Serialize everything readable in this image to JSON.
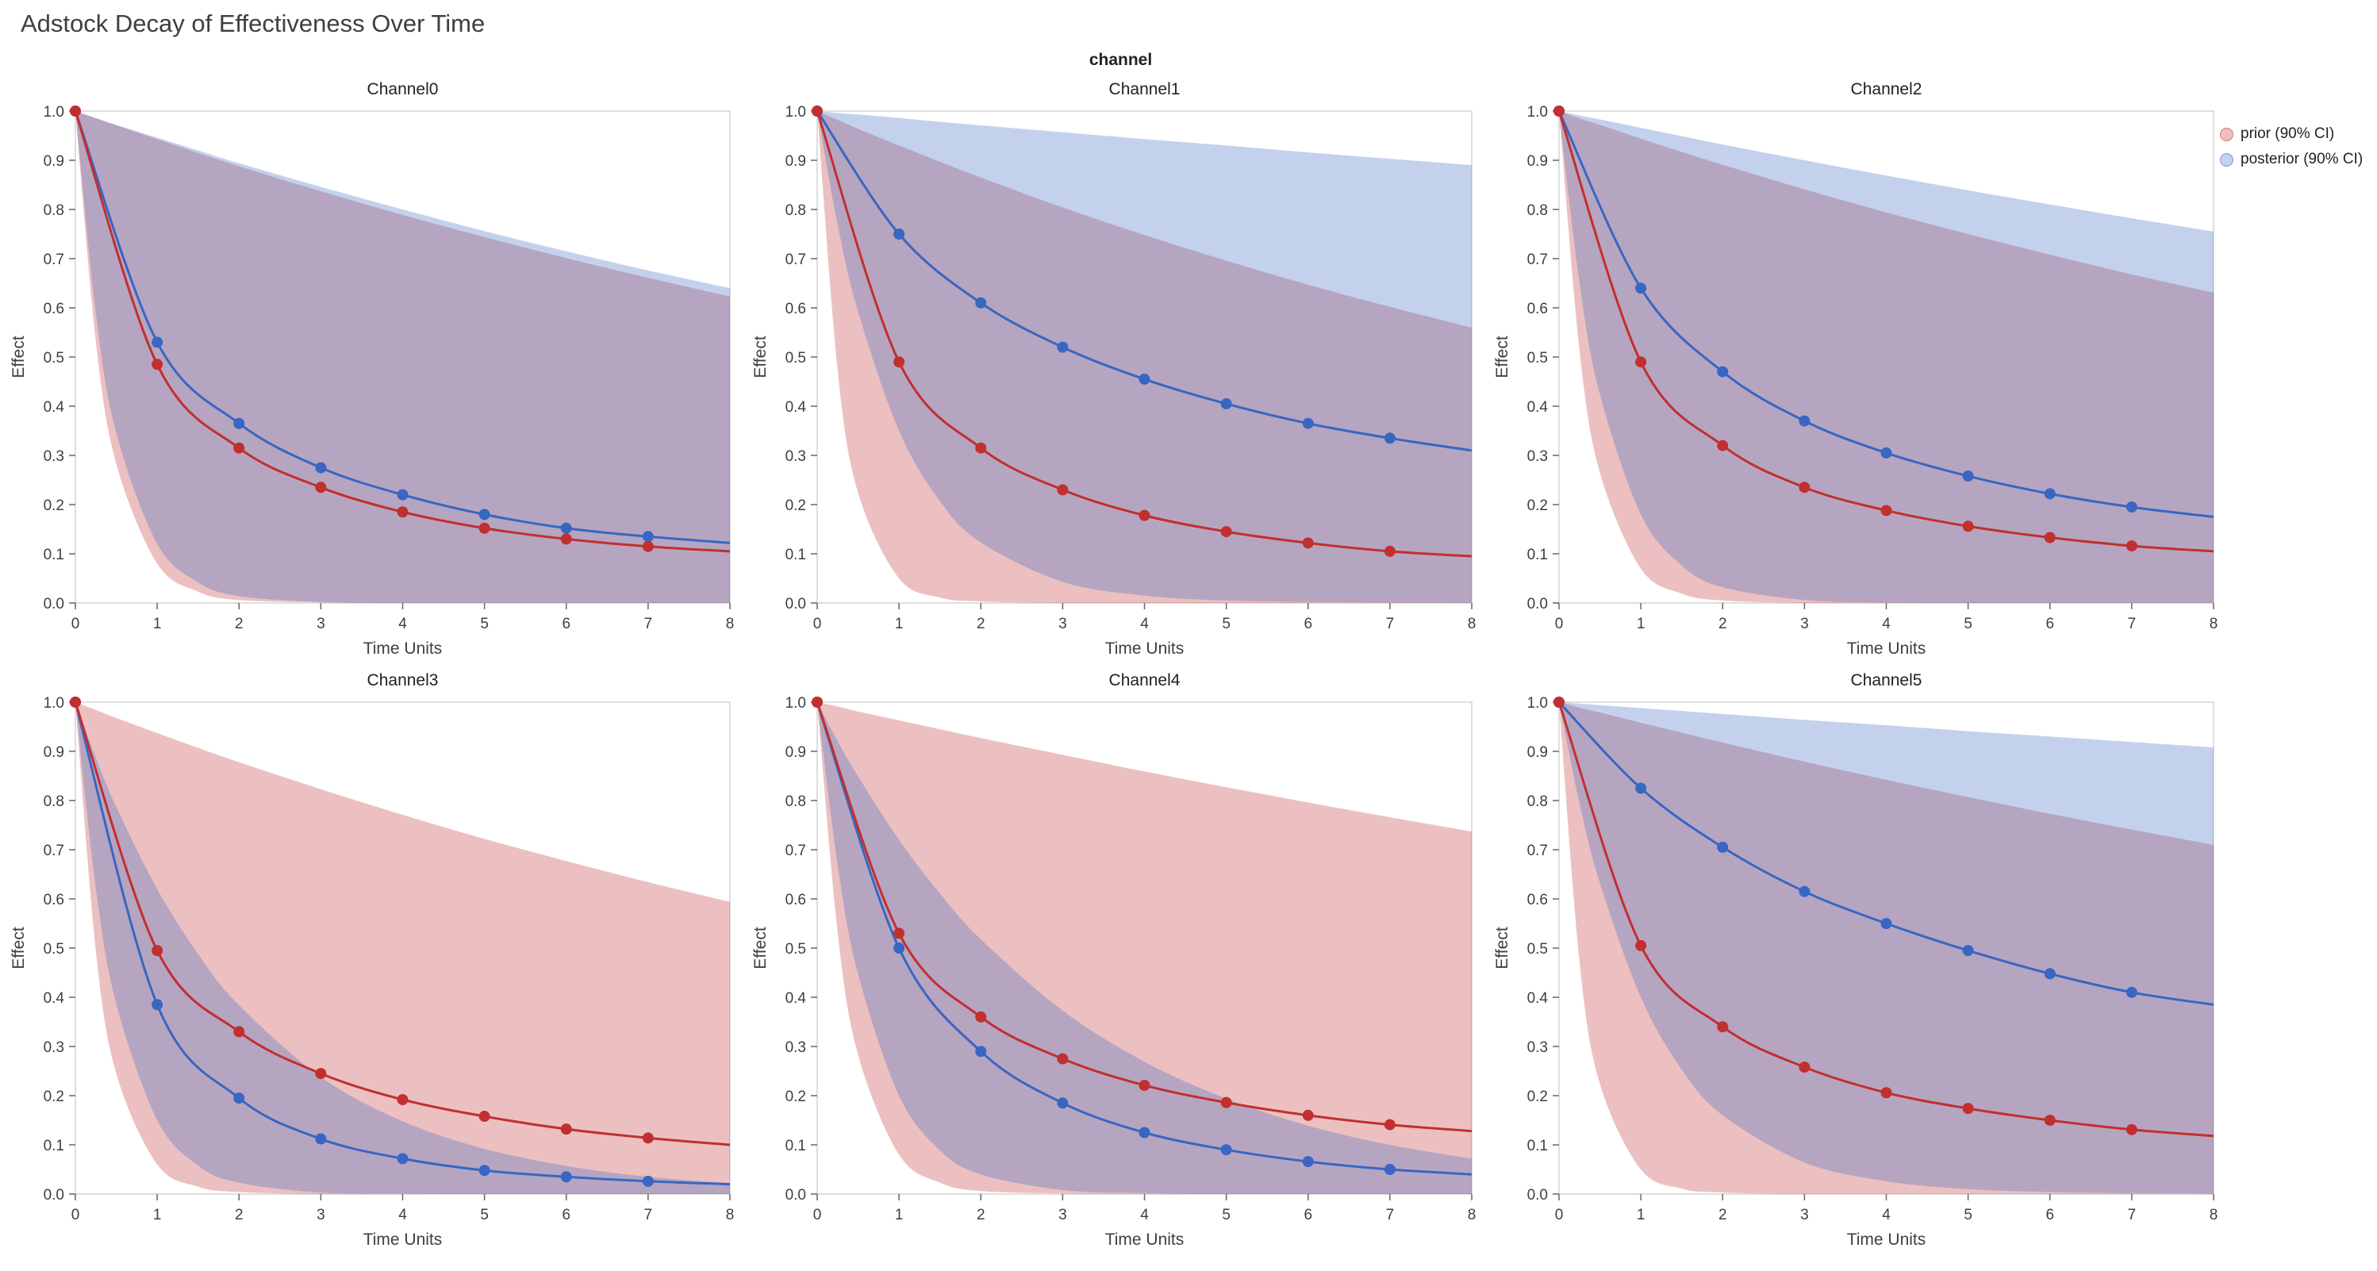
{
  "page_title": "Adstock Decay of Effectiveness Over Time",
  "facet_title": "channel",
  "legend": {
    "items": [
      {
        "label": "prior (90% CI)",
        "color_key": "prior"
      },
      {
        "label": "posterior (90% CI)",
        "color_key": "posterior"
      }
    ]
  },
  "chart_data": {
    "type": "line",
    "title": "Adstock Decay of Effectiveness Over Time",
    "xlabel": "Time Units",
    "ylabel": "Effect",
    "xlim": [
      0,
      8
    ],
    "ylim": [
      0,
      1
    ],
    "xticks": [
      0,
      1,
      2,
      3,
      4,
      5,
      6,
      7,
      8
    ],
    "yticks": [
      0,
      0.1,
      0.2,
      0.3,
      0.4,
      0.5,
      0.6,
      0.7,
      0.8,
      0.9,
      1.0
    ],
    "grid": false,
    "legend_position": "top-right",
    "layout": {
      "rows": 2,
      "cols": 3
    },
    "colors": {
      "prior": "#c12f2f",
      "posterior": "#3866c2",
      "band_opacity": 0.3,
      "frame": "#d3d3d3",
      "tick": "#666666",
      "text": "#3c4043"
    },
    "mean_x": [
      0,
      1,
      2,
      3,
      4,
      5,
      6,
      7,
      8
    ],
    "marker_x": [
      0,
      1,
      2,
      3,
      4,
      5,
      6,
      7
    ],
    "band_x": [
      0,
      0.25,
      0.5,
      1,
      1.5,
      2,
      3,
      4,
      5,
      6,
      7,
      8
    ],
    "panels": [
      {
        "title": "Channel0",
        "prior_mean": [
          1,
          0.485,
          0.315,
          0.235,
          0.185,
          0.152,
          0.13,
          0.115,
          0.105
        ],
        "posterior_mean": [
          1,
          0.53,
          0.365,
          0.275,
          0.22,
          0.18,
          0.152,
          0.135,
          0.122
        ],
        "prior_band_upper": [
          1,
          0.985,
          0.971,
          0.943,
          0.915,
          0.888,
          0.837,
          0.789,
          0.744,
          0.701,
          0.661,
          0.623
        ],
        "prior_band_lower": [
          1,
          0.532,
          0.283,
          0.08,
          0.023,
          0.006,
          0.001,
          0,
          0,
          0,
          0,
          0
        ],
        "posterior_band_upper": [
          1,
          0.986,
          0.972,
          0.946,
          0.92,
          0.894,
          0.846,
          0.8,
          0.756,
          0.715,
          0.676,
          0.64
        ],
        "posterior_band_lower": [
          1,
          0.589,
          0.346,
          0.12,
          0.042,
          0.014,
          0.002,
          0,
          0,
          0,
          0,
          0
        ]
      },
      {
        "title": "Channel1",
        "prior_mean": [
          1,
          0.49,
          0.315,
          0.23,
          0.178,
          0.145,
          0.122,
          0.105,
          0.095
        ],
        "posterior_mean": [
          1,
          0.75,
          0.61,
          0.52,
          0.455,
          0.405,
          0.365,
          0.335,
          0.31
        ],
        "prior_band_upper": [
          1,
          0.982,
          0.964,
          0.93,
          0.897,
          0.865,
          0.804,
          0.748,
          0.696,
          0.647,
          0.602,
          0.56
        ],
        "prior_band_lower": [
          1,
          0.473,
          0.224,
          0.05,
          0.011,
          0.003,
          0,
          0,
          0,
          0,
          0,
          0
        ],
        "posterior_band_upper": [
          1,
          0.996,
          0.993,
          0.986,
          0.978,
          0.971,
          0.957,
          0.943,
          0.93,
          0.916,
          0.903,
          0.89
        ],
        "posterior_band_lower": [
          1,
          0.769,
          0.592,
          0.35,
          0.207,
          0.123,
          0.043,
          0.015,
          0.005,
          0.002,
          0.001,
          0
        ]
      },
      {
        "title": "Channel2",
        "prior_mean": [
          1,
          0.49,
          0.32,
          0.235,
          0.188,
          0.156,
          0.133,
          0.116,
          0.105
        ],
        "posterior_mean": [
          1,
          0.64,
          0.47,
          0.37,
          0.305,
          0.258,
          0.222,
          0.195,
          0.175
        ],
        "prior_band_upper": [
          1,
          0.985,
          0.972,
          0.944,
          0.917,
          0.891,
          0.841,
          0.794,
          0.75,
          0.708,
          0.668,
          0.631
        ],
        "prior_band_lower": [
          1,
          0.514,
          0.265,
          0.07,
          0.019,
          0.005,
          0,
          0,
          0,
          0,
          0,
          0
        ],
        "posterior_band_upper": [
          1,
          0.991,
          0.983,
          0.966,
          0.949,
          0.932,
          0.9,
          0.869,
          0.839,
          0.81,
          0.782,
          0.755
        ],
        "posterior_band_lower": [
          1,
          0.651,
          0.424,
          0.18,
          0.076,
          0.032,
          0.006,
          0.001,
          0,
          0,
          0,
          0
        ]
      },
      {
        "title": "Channel3",
        "prior_mean": [
          1,
          0.495,
          0.33,
          0.245,
          0.192,
          0.158,
          0.132,
          0.114,
          0.1
        ],
        "posterior_mean": [
          1,
          0.385,
          0.195,
          0.112,
          0.072,
          0.048,
          0.035,
          0.026,
          0.02
        ],
        "prior_band_upper": [
          1,
          0.984,
          0.968,
          0.937,
          0.907,
          0.878,
          0.823,
          0.771,
          0.722,
          0.677,
          0.634,
          0.594
        ],
        "prior_band_lower": [
          1,
          0.495,
          0.245,
          0.06,
          0.015,
          0.004,
          0,
          0,
          0,
          0,
          0,
          0
        ],
        "posterior_band_upper": [
          1,
          0.887,
          0.787,
          0.62,
          0.488,
          0.384,
          0.238,
          0.148,
          0.092,
          0.057,
          0.035,
          0.022
        ],
        "posterior_band_lower": [
          1,
          0.622,
          0.387,
          0.15,
          0.058,
          0.023,
          0.003,
          0.001,
          0,
          0,
          0,
          0
        ]
      },
      {
        "title": "Channel4",
        "prior_mean": [
          1,
          0.53,
          0.36,
          0.275,
          0.221,
          0.186,
          0.16,
          0.141,
          0.128
        ],
        "posterior_mean": [
          1,
          0.5,
          0.29,
          0.185,
          0.125,
          0.09,
          0.066,
          0.05,
          0.04
        ],
        "prior_band_upper": [
          1,
          0.991,
          0.981,
          0.963,
          0.945,
          0.927,
          0.893,
          0.859,
          0.827,
          0.796,
          0.766,
          0.737
        ],
        "prior_band_lower": [
          1,
          0.532,
          0.283,
          0.08,
          0.023,
          0.006,
          0.001,
          0,
          0,
          0,
          0,
          0
        ],
        "posterior_band_upper": [
          1,
          0.921,
          0.849,
          0.72,
          0.611,
          0.518,
          0.373,
          0.269,
          0.194,
          0.139,
          0.1,
          0.072
        ],
        "posterior_band_lower": [
          1,
          0.669,
          0.447,
          0.2,
          0.089,
          0.04,
          0.008,
          0.002,
          0,
          0,
          0,
          0
        ]
      },
      {
        "title": "Channel5",
        "prior_mean": [
          1,
          0.505,
          0.34,
          0.258,
          0.206,
          0.174,
          0.15,
          0.131,
          0.118
        ],
        "posterior_mean": [
          1,
          0.825,
          0.705,
          0.615,
          0.55,
          0.495,
          0.448,
          0.41,
          0.385
        ],
        "prior_band_upper": [
          1,
          0.989,
          0.979,
          0.958,
          0.938,
          0.918,
          0.879,
          0.842,
          0.807,
          0.773,
          0.741,
          0.71
        ],
        "prior_band_lower": [
          1,
          0.473,
          0.224,
          0.05,
          0.011,
          0.003,
          0,
          0,
          0,
          0,
          0,
          0
        ],
        "posterior_band_upper": [
          1,
          0.997,
          0.994,
          0.988,
          0.982,
          0.976,
          0.964,
          0.953,
          0.941,
          0.93,
          0.919,
          0.908
        ],
        "posterior_band_lower": [
          1,
          0.795,
          0.632,
          0.4,
          0.253,
          0.16,
          0.064,
          0.026,
          0.01,
          0.004,
          0.002,
          0.001
        ]
      }
    ]
  }
}
